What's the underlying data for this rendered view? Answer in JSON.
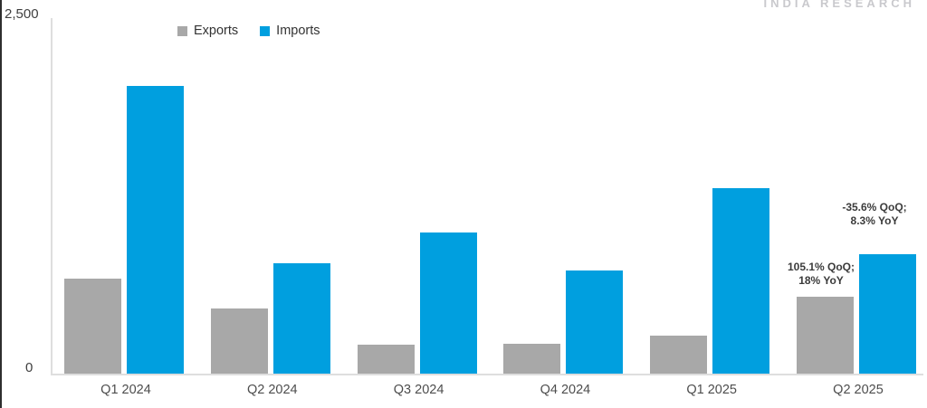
{
  "brand": {
    "label": "INDIA RESEARCH"
  },
  "axis": {
    "y_top_label": "2,500",
    "y_bottom_label": "0"
  },
  "chart_data": {
    "type": "bar",
    "title": "",
    "xlabel": "",
    "ylabel": "",
    "categories": [
      "Q1 2024",
      "Q2 2024",
      "Q3 2024",
      "Q4 2024",
      "Q1 2025",
      "Q2 2025"
    ],
    "series": [
      {
        "name": "Exports",
        "color": "#a8a8a8",
        "values": [
          665,
          460,
          205,
          210,
          265,
          543
        ]
      },
      {
        "name": "Imports",
        "color": "#009fdf",
        "values": [
          2020,
          776,
          990,
          725,
          1305,
          840
        ]
      }
    ],
    "ylim": [
      0,
      2500
    ],
    "y_tick_labels": [
      "0",
      "2,500"
    ],
    "grid": false,
    "legend_position": "top",
    "annotations": [
      {
        "series": "Imports",
        "category": "Q2 2025",
        "lines": [
          "-35.6% QoQ;",
          "8.3% YoY"
        ]
      },
      {
        "series": "Exports",
        "category": "Q2 2025",
        "lines": [
          "105.1% QoQ;",
          "18% YoY"
        ]
      }
    ]
  }
}
